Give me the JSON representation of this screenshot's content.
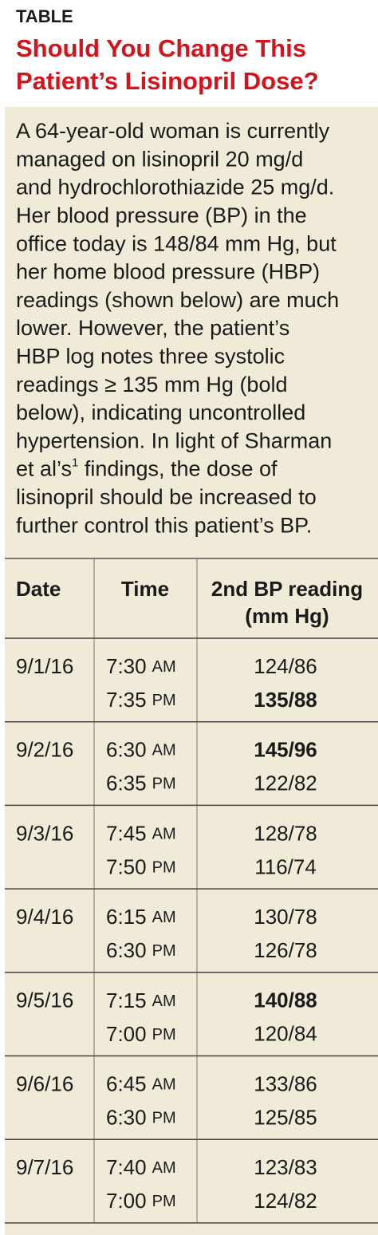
{
  "header": {
    "label": "TABLE",
    "title_lines": [
      "Should You Change This",
      "Patient’s Lisinopril Dose?"
    ]
  },
  "paragraph": {
    "lines": [
      "A 64-year-old woman is currently",
      "managed on lisinopril 20 mg/d",
      "and hydrochlorothiazide 25 mg/d.",
      "Her blood pressure (BP) in the",
      "office today is 148/84 mm Hg, but",
      "her home blood pressure (HBP)",
      "readings (shown below) are much",
      "lower. However, the patient’s",
      "HBP log notes three systolic",
      "readings ≥ 135 mm Hg (bold",
      "below), indicating uncontrolled",
      "hypertension. In light of Sharman",
      [
        "et al’s",
        "1",
        " findings, the dose of"
      ],
      "lisinopril should be increased to",
      "further control this patient’s BP."
    ]
  },
  "table": {
    "columns": [
      "Date",
      "Time",
      [
        "2nd BP reading",
        "(mm Hg)"
      ]
    ],
    "rows": [
      {
        "date": "9/1/16",
        "entries": [
          {
            "time": "7:30",
            "period": "AM",
            "reading": "124/86",
            "bold": false
          },
          {
            "time": "7:35",
            "period": "PM",
            "reading": "135/88",
            "bold": true
          }
        ]
      },
      {
        "date": "9/2/16",
        "entries": [
          {
            "time": "6:30",
            "period": "AM",
            "reading": "145/96",
            "bold": true
          },
          {
            "time": "6:35",
            "period": "PM",
            "reading": "122/82",
            "bold": false
          }
        ]
      },
      {
        "date": "9/3/16",
        "entries": [
          {
            "time": "7:45",
            "period": "AM",
            "reading": "128/78",
            "bold": false
          },
          {
            "time": "7:50",
            "period": "PM",
            "reading": "116/74",
            "bold": false
          }
        ]
      },
      {
        "date": "9/4/16",
        "entries": [
          {
            "time": "6:15",
            "period": "AM",
            "reading": "130/78",
            "bold": false
          },
          {
            "time": "6:30",
            "period": "PM",
            "reading": "126/78",
            "bold": false
          }
        ]
      },
      {
        "date": "9/5/16",
        "entries": [
          {
            "time": "7:15",
            "period": "AM",
            "reading": "140/88",
            "bold": true
          },
          {
            "time": "7:00",
            "period": "PM",
            "reading": "120/84",
            "bold": false
          }
        ]
      },
      {
        "date": "9/6/16",
        "entries": [
          {
            "time": "6:45",
            "period": "AM",
            "reading": "133/86",
            "bold": false
          },
          {
            "time": "6:30",
            "period": "PM",
            "reading": "125/85",
            "bold": false
          }
        ]
      },
      {
        "date": "9/7/16",
        "entries": [
          {
            "time": "7:40",
            "period": "AM",
            "reading": "123/83",
            "bold": false
          },
          {
            "time": "7:00",
            "period": "PM",
            "reading": "124/82",
            "bold": false
          }
        ]
      }
    ]
  }
}
